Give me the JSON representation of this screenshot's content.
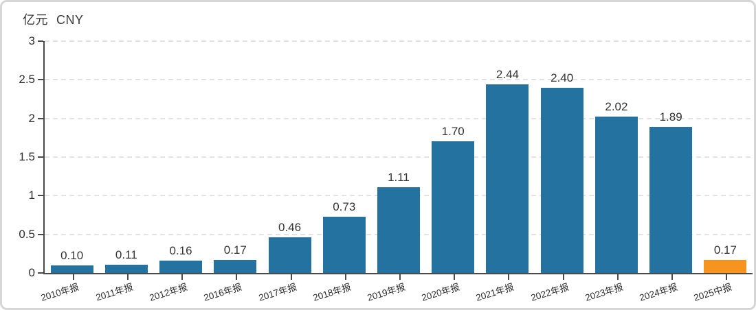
{
  "header": {
    "unit": "亿元",
    "currency": "CNY"
  },
  "chart_data": {
    "type": "bar",
    "title": "亿元 CNY",
    "xlabel": "",
    "ylabel": "亿元 CNY",
    "categories": [
      "2010年报",
      "2011年报",
      "2012年报",
      "2016年报",
      "2017年报",
      "2018年报",
      "2019年报",
      "2020年报",
      "2021年报",
      "2022年报",
      "2023年报",
      "2024年报",
      "2025中报"
    ],
    "values": [
      0.1,
      0.11,
      0.16,
      0.17,
      0.46,
      0.73,
      1.11,
      1.7,
      2.44,
      2.4,
      2.02,
      1.89,
      0.17
    ],
    "value_labels": [
      "0.10",
      "0.11",
      "0.16",
      "0.17",
      "0.46",
      "0.73",
      "1.11",
      "1.70",
      "2.44",
      "2.40",
      "2.02",
      "1.89",
      "0.17"
    ],
    "ylim": [
      0,
      3
    ],
    "y_ticks": [
      0,
      0.5,
      1,
      1.5,
      2,
      2.5,
      3
    ],
    "y_tick_labels": [
      "0",
      "0.5",
      "1",
      "1.5",
      "2",
      "2.5",
      "3"
    ],
    "grid": true,
    "grid_style": "dashed",
    "legend": false,
    "bar_color": "#24729F",
    "highlight_color": "#F7941E",
    "highlight_index": 12,
    "axis_color": "#4a4a4a",
    "label_color": "#333333"
  }
}
